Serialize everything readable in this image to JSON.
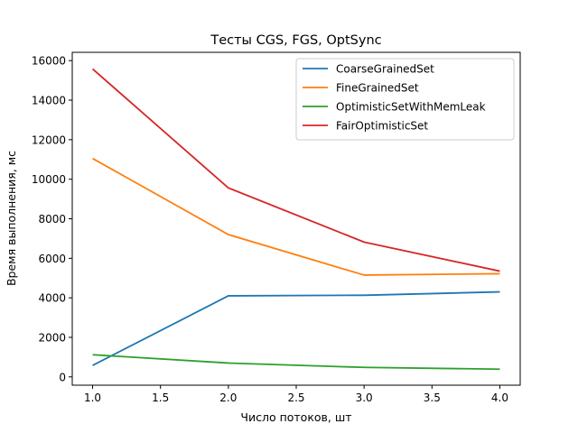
{
  "chart_data": {
    "type": "line",
    "title": "Тесты CGS, FGS, OptSync",
    "xlabel": "Число потоков, шт",
    "ylabel": "Время выполнения, мс",
    "x": [
      1.0,
      2.0,
      3.0,
      4.0
    ],
    "xlim": [
      0.85,
      4.15
    ],
    "ylim": [
      -420,
      16420
    ],
    "xticks": [
      "1.0",
      "1.5",
      "2.0",
      "2.5",
      "3.0",
      "3.5",
      "4.0"
    ],
    "yticks": [
      "0",
      "2000",
      "4000",
      "6000",
      "8000",
      "10000",
      "12000",
      "14000",
      "16000"
    ],
    "grid": false,
    "legend_position": "top-right",
    "series": [
      {
        "name": "CoarseGrainedSet",
        "color": "#1f77b4",
        "values": [
          580,
          4100,
          4130,
          4300
        ]
      },
      {
        "name": "FineGrainedSet",
        "color": "#ff7f0e",
        "values": [
          11050,
          7200,
          5150,
          5220
        ]
      },
      {
        "name": "OptimisticSetWithMemLeak",
        "color": "#2ca02c",
        "values": [
          1120,
          700,
          480,
          390
        ]
      },
      {
        "name": "FairOptimisticSet",
        "color": "#d62728",
        "values": [
          15580,
          9560,
          6820,
          5350
        ]
      }
    ]
  }
}
